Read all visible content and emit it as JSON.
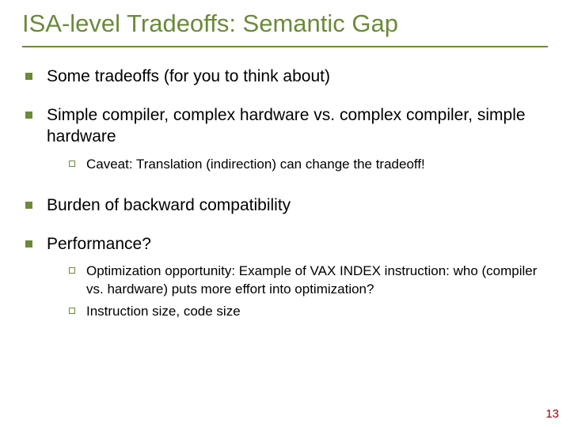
{
  "title": "ISA-level Tradeoffs: Semantic Gap",
  "title_color": "#6b8a3a",
  "title_fontsize": 31,
  "rule_color": "#6b8a3a",
  "body_fontsize_l1": 21,
  "body_fontsize_l2": 17,
  "bullet_color": "#6b8a3a",
  "text_color": "#000000",
  "pagenum_color": "#a00000",
  "bullets": [
    {
      "text": "Some tradeoffs (for you to think about)",
      "sub": []
    },
    {
      "text": "Simple compiler, complex hardware vs. complex compiler, simple hardware",
      "sub": [
        "Caveat: Translation (indirection) can change the tradeoff!"
      ]
    },
    {
      "text": "Burden of backward compatibility",
      "sub": []
    },
    {
      "text": "Performance?",
      "sub": [
        "Optimization opportunity: Example of VAX INDEX instruction: who (compiler vs. hardware) puts more effort into optimization?",
        "Instruction size, code size"
      ]
    }
  ],
  "page_number": "13"
}
